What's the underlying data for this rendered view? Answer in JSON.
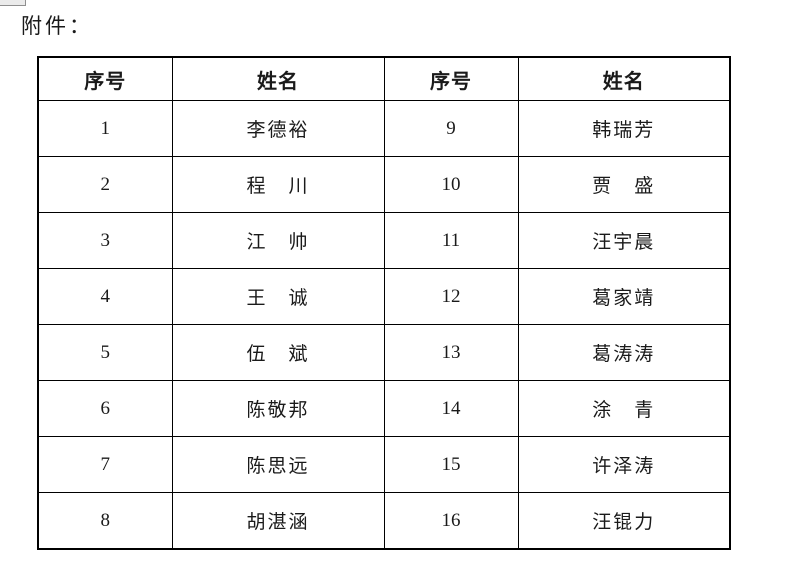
{
  "page": {
    "attachment_label": "附件："
  },
  "table": {
    "headers": [
      "序号",
      "姓名",
      "序号",
      "姓名"
    ],
    "rows": [
      {
        "no_left": "1",
        "name_left": "李德裕",
        "no_right": "9",
        "name_right": "韩瑞芳"
      },
      {
        "no_left": "2",
        "name_left": "程　川",
        "no_right": "10",
        "name_right": "贾　盛"
      },
      {
        "no_left": "3",
        "name_left": "江　帅",
        "no_right": "11",
        "name_right": "汪宇晨"
      },
      {
        "no_left": "4",
        "name_left": "王　诚",
        "no_right": "12",
        "name_right": "葛家靖"
      },
      {
        "no_left": "5",
        "name_left": "伍　斌",
        "no_right": "13",
        "name_right": "葛涛涛"
      },
      {
        "no_left": "6",
        "name_left": "陈敬邦",
        "no_right": "14",
        "name_right": "涂　青"
      },
      {
        "no_left": "7",
        "name_left": "陈思远",
        "no_right": "15",
        "name_right": "许泽涛"
      },
      {
        "no_left": "8",
        "name_left": "胡湛涵",
        "no_right": "16",
        "name_right": "汪锟力"
      }
    ]
  }
}
